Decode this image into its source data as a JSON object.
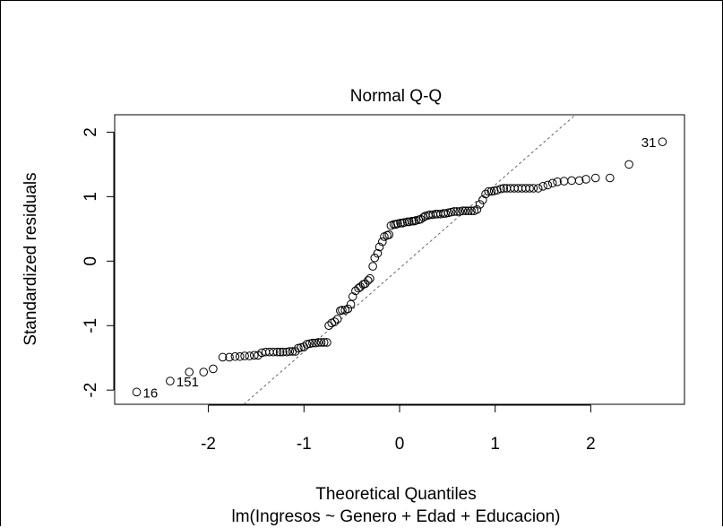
{
  "chart_data": {
    "type": "scatter",
    "title": "Normal Q-Q",
    "xlabel": "Theoretical Quantiles",
    "subtitle": "lm(Ingresos ~ Genero + Edad + Educacion)",
    "ylabel": "Standardized residuals",
    "xlim": [
      -2.98,
      2.98
    ],
    "ylim": [
      -2.22,
      2.27
    ],
    "xticks": [
      -2,
      -1,
      0,
      1,
      2
    ],
    "yticks": [
      -2,
      -1,
      0,
      1,
      2
    ],
    "grid": false,
    "reference_line": {
      "x": [
        -1.63,
        1.84
      ],
      "y": [
        -2.22,
        2.27
      ]
    },
    "labeled_points": [
      {
        "label": "16",
        "x": -2.75,
        "y": -2.03
      },
      {
        "label": "151",
        "x": -2.4,
        "y": -1.86
      },
      {
        "label": "31",
        "x": 2.75,
        "y": 1.85
      }
    ],
    "x": [
      -2.75,
      -2.4,
      -2.2,
      -2.05,
      -1.95,
      -1.85,
      -1.78,
      -1.72,
      -1.67,
      -1.62,
      -1.57,
      -1.52,
      -1.48,
      -1.44,
      -1.4,
      -1.36,
      -1.32,
      -1.28,
      -1.25,
      -1.22,
      -1.18,
      -1.15,
      -1.12,
      -1.09,
      -1.06,
      -1.03,
      -1.0,
      -0.97,
      -0.94,
      -0.91,
      -0.88,
      -0.85,
      -0.82,
      -0.79,
      -0.76,
      -0.74,
      -0.71,
      -0.68,
      -0.65,
      -0.62,
      -0.6,
      -0.57,
      -0.54,
      -0.51,
      -0.49,
      -0.46,
      -0.43,
      -0.41,
      -0.38,
      -0.36,
      -0.33,
      -0.31,
      -0.28,
      -0.26,
      -0.23,
      -0.21,
      -0.18,
      -0.16,
      -0.13,
      -0.11,
      -0.09,
      -0.06,
      -0.04,
      -0.02,
      0.01,
      0.03,
      0.05,
      0.08,
      0.1,
      0.13,
      0.15,
      0.17,
      0.2,
      0.22,
      0.25,
      0.27,
      0.3,
      0.32,
      0.35,
      0.38,
      0.4,
      0.43,
      0.46,
      0.48,
      0.51,
      0.54,
      0.57,
      0.6,
      0.63,
      0.66,
      0.69,
      0.72,
      0.75,
      0.78,
      0.81,
      0.84,
      0.87,
      0.9,
      0.93,
      0.96,
      0.99,
      1.02,
      1.06,
      1.09,
      1.12,
      1.16,
      1.2,
      1.24,
      1.28,
      1.32,
      1.36,
      1.4,
      1.45,
      1.5,
      1.55,
      1.6,
      1.65,
      1.72,
      1.8,
      1.88,
      1.95,
      2.05,
      2.2,
      2.4,
      2.75
    ],
    "y": [
      -2.03,
      -1.86,
      -1.72,
      -1.72,
      -1.67,
      -1.49,
      -1.49,
      -1.48,
      -1.48,
      -1.47,
      -1.47,
      -1.46,
      -1.46,
      -1.42,
      -1.41,
      -1.41,
      -1.41,
      -1.41,
      -1.41,
      -1.41,
      -1.41,
      -1.4,
      -1.4,
      -1.4,
      -1.35,
      -1.34,
      -1.33,
      -1.29,
      -1.28,
      -1.27,
      -1.27,
      -1.26,
      -1.26,
      -1.26,
      -1.26,
      -1.0,
      -0.96,
      -0.94,
      -0.9,
      -0.77,
      -0.76,
      -0.76,
      -0.74,
      -0.67,
      -0.55,
      -0.46,
      -0.42,
      -0.4,
      -0.36,
      -0.35,
      -0.3,
      -0.27,
      -0.08,
      0.05,
      0.12,
      0.22,
      0.3,
      0.38,
      0.4,
      0.41,
      0.55,
      0.57,
      0.57,
      0.58,
      0.59,
      0.59,
      0.6,
      0.61,
      0.61,
      0.62,
      0.62,
      0.63,
      0.64,
      0.65,
      0.68,
      0.7,
      0.71,
      0.72,
      0.72,
      0.73,
      0.73,
      0.73,
      0.74,
      0.74,
      0.75,
      0.76,
      0.77,
      0.77,
      0.77,
      0.78,
      0.78,
      0.78,
      0.78,
      0.78,
      0.8,
      0.88,
      0.95,
      1.04,
      1.08,
      1.08,
      1.09,
      1.1,
      1.12,
      1.13,
      1.13,
      1.13,
      1.13,
      1.13,
      1.13,
      1.13,
      1.13,
      1.13,
      1.13,
      1.16,
      1.18,
      1.21,
      1.23,
      1.24,
      1.25,
      1.25,
      1.27,
      1.29,
      1.29,
      1.5,
      1.85
    ]
  }
}
